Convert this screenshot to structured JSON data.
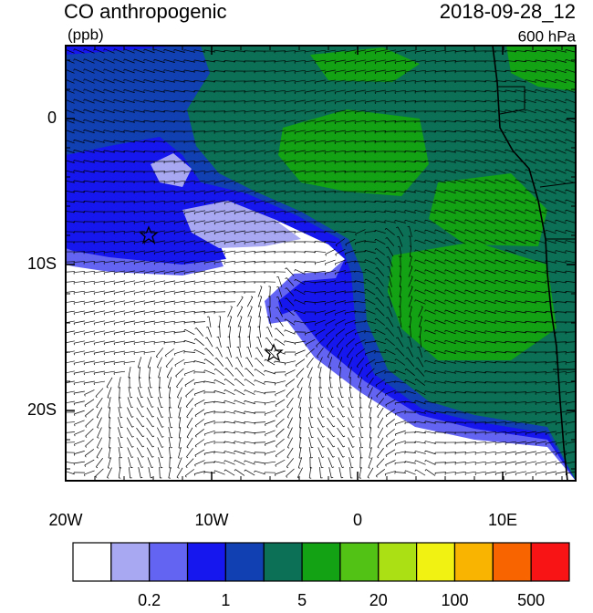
{
  "header": {
    "title": "CO anthropogenic",
    "units": "(ppb)",
    "time": "2018-09-28_12",
    "level": "600 hPa"
  },
  "map": {
    "x_labels": [
      "20W",
      "10W",
      "0",
      "10E"
    ],
    "y_labels": [
      "0",
      "10S",
      "20S"
    ]
  },
  "colorbar": {
    "colors": [
      "#ffffff",
      "#a8a8f2",
      "#6464f2",
      "#1616ee",
      "#1040b2",
      "#0b7055",
      "#12a214",
      "#52c214",
      "#aae014",
      "#f2f212",
      "#f8b400",
      "#f86400",
      "#f81414"
    ],
    "labels": [
      "0.2",
      "1",
      "5",
      "20",
      "100",
      "500"
    ]
  }
}
